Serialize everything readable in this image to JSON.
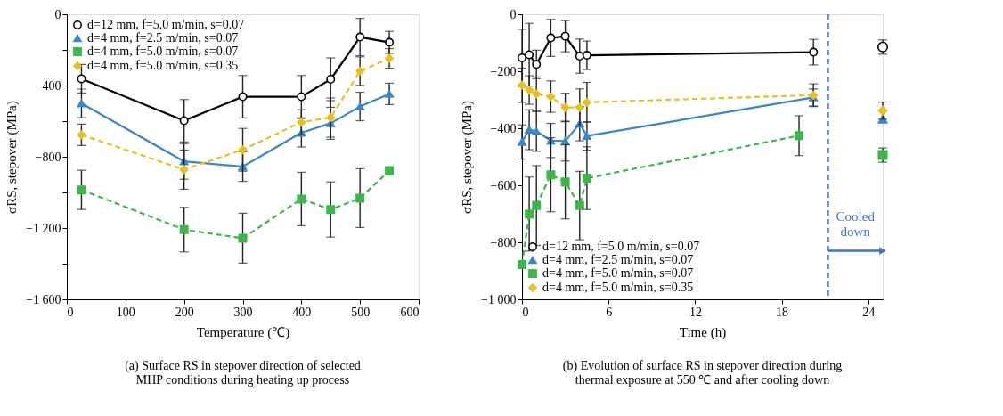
{
  "chart_data": [
    {
      "type": "line",
      "xlabel": "Temperature (℃)",
      "ylabel": "σRS, stepover (MPa)",
      "xlim": [
        0,
        600
      ],
      "xticks": [
        0,
        100,
        200,
        300,
        400,
        500,
        600
      ],
      "ylim": [
        -1600,
        0
      ],
      "yticks": [
        {
          "value": -1600,
          "label": "−1 600"
        },
        {
          "value": -1400,
          "label": null
        },
        {
          "value": -1200,
          "label": "−1 200"
        },
        {
          "value": -1000,
          "label": null
        },
        -800,
        {
          "value": -600,
          "label": null
        },
        -400,
        {
          "value": -200,
          "label": null
        },
        0
      ],
      "x": [
        25,
        200,
        300,
        400,
        450,
        500,
        550
      ],
      "series": [
        {
          "name": "d=12 mm, f=5.0 m/min, s=0.07",
          "color": "#000000",
          "marker": "circle",
          "line_style": "solid",
          "values": [
            -362,
            -598,
            -463,
            -463,
            -365,
            -128,
            -158
          ],
          "errors": [
            80,
            119,
            119,
            119,
            120,
            105,
            62
          ]
        },
        {
          "name": "d=4 mm, f=2.5 m/min, s=0.07",
          "color": "#3a86c8",
          "marker": "triangle",
          "line_style": "solid",
          "values": [
            -500,
            -826,
            -855,
            -665,
            -612,
            -518,
            -447
          ],
          "errors": [
            80,
            100,
            83,
            80,
            90,
            80,
            60
          ]
        },
        {
          "name": "d=4 mm, f=5.0 m/min, s=0.07",
          "color": "#3cb84a",
          "marker": "square",
          "line_style": "dashed",
          "values": [
            -986,
            -1209,
            -1257,
            -1037,
            -1096,
            -1032,
            -878
          ],
          "errors": [
            110,
            125,
            140,
            150,
            155,
            165,
            null
          ]
        },
        {
          "name": "d=4 mm, f=5.0 m/min, s=0.35",
          "color": "#e8c020",
          "marker": "diamond",
          "line_style": "dashed",
          "values": [
            -677,
            -872,
            -761,
            -606,
            -580,
            -319,
            -248
          ],
          "errors": [
            60,
            110,
            120,
            70,
            110,
            80,
            55
          ]
        }
      ],
      "grid": false,
      "legend": "top left",
      "annotations": [
        "(a) Surface RS in stepover direction of selected\nMHP conditions during heating up process"
      ]
    },
    {
      "type": "line",
      "xlabel": "Time (h)",
      "ylabel": "σRS, stepover (MPa)",
      "xlim": [
        0,
        25
      ],
      "xticks": [
        0,
        6,
        12,
        18,
        24
      ],
      "ylim": [
        -1000,
        0
      ],
      "yticks": [
        {
          "value": -1000,
          "label": "−1 000"
        },
        -800,
        -600,
        -400,
        -200,
        0
      ],
      "x": [
        0,
        0.5,
        1,
        2,
        3,
        4,
        4.5,
        20.2
      ],
      "series": [
        {
          "name": "d=12 mm, f=5.0 m/min, s=0.07",
          "color": "#000000",
          "marker": "circle",
          "line_style": "solid",
          "values": [
            -153,
            -142,
            -176,
            -83,
            -77,
            -147,
            -144,
            -133
          ],
          "errors": [
            100,
            110,
            50,
            65,
            55,
            60,
            50,
            45
          ]
        },
        {
          "name": "d=4 mm, f=2.5 m/min, s=0.07",
          "color": "#3a86c8",
          "marker": "triangle",
          "line_style": "solid",
          "values": [
            -448,
            -405,
            -411,
            -443,
            -445,
            -384,
            -427,
            -292
          ],
          "errors": [
            60,
            70,
            70,
            60,
            70,
            60,
            50,
            30
          ]
        },
        {
          "name": "d=4 mm, f=5.0 m/min, s=0.07",
          "color": "#3cb84a",
          "marker": "square",
          "line_style": "dashed",
          "x": [
            0,
            0.5,
            1,
            2,
            3,
            4,
            4.5,
            19.2
          ],
          "values": [
            -878,
            -701,
            -671,
            -563,
            -588,
            -671,
            -575,
            -426
          ],
          "errors": [
            null,
            130,
            140,
            130,
            130,
            120,
            110,
            70
          ]
        },
        {
          "name": "d=4 mm, f=5.0 m/min, s=0.35",
          "color": "#e8c020",
          "marker": "diamond",
          "line_style": "dashed",
          "values": [
            -249,
            -266,
            -280,
            -289,
            -327,
            -327,
            -309,
            -284
          ],
          "errors": [
            60,
            50,
            60,
            55,
            50,
            65,
            70,
            40
          ]
        },
        {
          "type": "scatter",
          "color": "#000000",
          "marker": "circle",
          "x": [
            25
          ],
          "values": [
            -115
          ],
          "errors": [
            25
          ]
        },
        {
          "type": "scatter",
          "color": "#3a86c8",
          "marker": "triangle",
          "x": [
            25
          ],
          "values": [
            -368
          ],
          "errors": [
            null
          ]
        },
        {
          "type": "scatter",
          "color": "#3cb84a",
          "marker": "square",
          "x": [
            25
          ],
          "values": [
            -494
          ],
          "errors": [
            25
          ]
        },
        {
          "type": "scatter",
          "color": "#e8c020",
          "marker": "diamond",
          "x": [
            25
          ],
          "values": [
            -338
          ],
          "errors": [
            30
          ]
        }
      ],
      "ref_lines": [
        {
          "axis": "x",
          "value": 21.2,
          "color": "#4472c4",
          "line_style": "dashed"
        }
      ],
      "grid": false,
      "legend": "bottom left",
      "annotations": [
        "Cooled down",
        "(b) Evolution of surface RS in stepover direction during\nthermal  exposure at 550 ℃ and after cooling down"
      ]
    }
  ]
}
